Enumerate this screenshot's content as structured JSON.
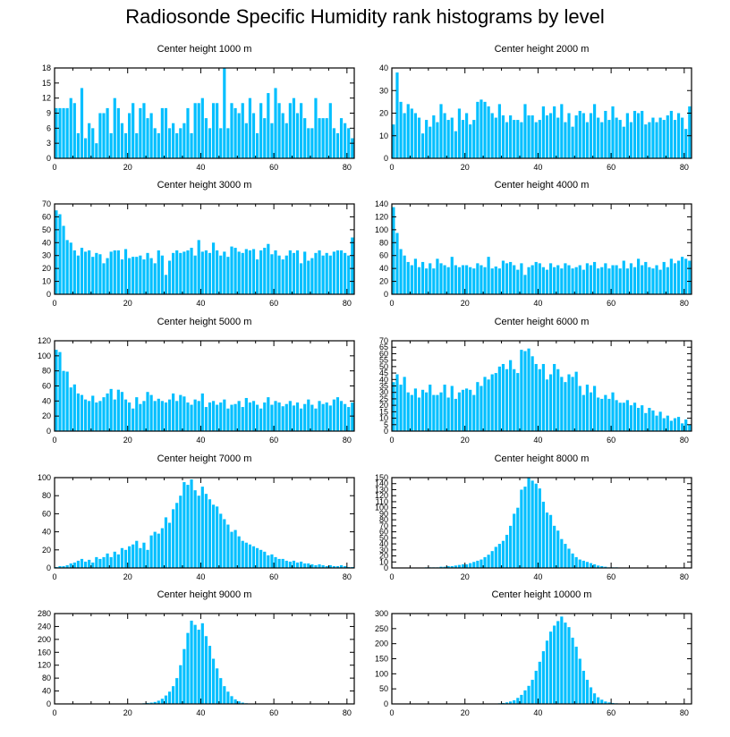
{
  "figure_title": "Radiosonde Specific Humidity rank histograms by level",
  "bar_color": "#00bfff",
  "axis_color": "#000000",
  "chart_data": [
    {
      "type": "bar",
      "title": "Center height 1000 m",
      "xlim": [
        0,
        82
      ],
      "ylim": [
        0,
        18
      ],
      "yticks": [
        0,
        3,
        6,
        9,
        12,
        15,
        18
      ],
      "xticks": [
        0,
        20,
        40,
        60,
        80
      ],
      "values": [
        10,
        10,
        10,
        10,
        12,
        11,
        5,
        14,
        4,
        7,
        6,
        3,
        9,
        9,
        10,
        5,
        12,
        10,
        7,
        5,
        9,
        11,
        5,
        10,
        11,
        8,
        9,
        6,
        5,
        10,
        10,
        6,
        7,
        5,
        6,
        7,
        10,
        5,
        11,
        11,
        12,
        8,
        6,
        11,
        11,
        6,
        18,
        6,
        11,
        10,
        9,
        11,
        7,
        12,
        9,
        5,
        11,
        8,
        13,
        7,
        14,
        11,
        9,
        7,
        11,
        12,
        9,
        11,
        8,
        6,
        6,
        12,
        8,
        8,
        8,
        11,
        6,
        5,
        8,
        7,
        6,
        4
      ]
    },
    {
      "type": "bar",
      "title": "Center height 2000 m",
      "xlim": [
        0,
        82
      ],
      "ylim": [
        0,
        40
      ],
      "yticks": [
        0,
        10,
        20,
        30,
        40
      ],
      "xticks": [
        0,
        20,
        40,
        60,
        80
      ],
      "values": [
        15,
        38,
        25,
        20,
        24,
        22,
        20,
        18,
        11,
        17,
        14,
        19,
        16,
        24,
        20,
        17,
        18,
        12,
        22,
        17,
        20,
        15,
        17,
        25,
        26,
        25,
        23,
        20,
        18,
        24,
        19,
        16,
        19,
        17,
        17,
        16,
        24,
        19,
        19,
        16,
        17,
        23,
        19,
        20,
        23,
        18,
        24,
        16,
        20,
        14,
        19,
        21,
        20,
        16,
        20,
        24,
        18,
        16,
        21,
        17,
        23,
        18,
        17,
        14,
        20,
        16,
        21,
        20,
        21,
        15,
        16,
        18,
        16,
        18,
        17,
        19,
        21,
        17,
        20,
        18,
        13,
        23
      ]
    },
    {
      "type": "bar",
      "title": "Center height 3000 m",
      "xlim": [
        0,
        82
      ],
      "ylim": [
        0,
        70
      ],
      "yticks": [
        0,
        10,
        20,
        30,
        40,
        50,
        60,
        70
      ],
      "xticks": [
        0,
        20,
        40,
        60,
        80
      ],
      "values": [
        65,
        62,
        53,
        42,
        40,
        34,
        30,
        36,
        33,
        34,
        29,
        32,
        31,
        24,
        28,
        33,
        34,
        34,
        27,
        35,
        28,
        29,
        29,
        30,
        27,
        32,
        28,
        24,
        34,
        30,
        15,
        26,
        32,
        34,
        32,
        33,
        34,
        36,
        30,
        42,
        33,
        34,
        32,
        40,
        34,
        30,
        33,
        29,
        37,
        36,
        33,
        32,
        35,
        34,
        35,
        27,
        34,
        36,
        39,
        31,
        34,
        30,
        27,
        30,
        34,
        32,
        34,
        24,
        33,
        26,
        28,
        32,
        34,
        30,
        32,
        30,
        33,
        34,
        34,
        32,
        30,
        44
      ]
    },
    {
      "type": "bar",
      "title": "Center height 4000 m",
      "xlim": [
        0,
        82
      ],
      "ylim": [
        0,
        140
      ],
      "yticks": [
        0,
        20,
        40,
        60,
        80,
        100,
        120,
        140
      ],
      "xticks": [
        0,
        20,
        40,
        60,
        80
      ],
      "values": [
        135,
        95,
        70,
        60,
        50,
        45,
        55,
        42,
        50,
        40,
        48,
        40,
        55,
        48,
        45,
        42,
        58,
        45,
        42,
        45,
        45,
        42,
        40,
        48,
        45,
        42,
        58,
        40,
        43,
        40,
        52,
        48,
        50,
        45,
        38,
        48,
        30,
        42,
        45,
        50,
        48,
        42,
        38,
        48,
        42,
        45,
        40,
        48,
        45,
        40,
        42,
        45,
        38,
        48,
        45,
        50,
        40,
        42,
        48,
        40,
        45,
        45,
        40,
        52,
        40,
        48,
        42,
        55,
        45,
        50,
        42,
        40,
        45,
        38,
        50,
        42,
        55,
        48,
        52,
        58,
        55,
        52
      ]
    },
    {
      "type": "bar",
      "title": "Center height 5000 m",
      "xlim": [
        0,
        82
      ],
      "ylim": [
        0,
        120
      ],
      "yticks": [
        0,
        20,
        40,
        60,
        80,
        100,
        120
      ],
      "xticks": [
        0,
        20,
        40,
        60,
        80
      ],
      "values": [
        108,
        105,
        80,
        79,
        58,
        62,
        50,
        48,
        42,
        40,
        47,
        38,
        40,
        45,
        50,
        56,
        42,
        55,
        52,
        42,
        38,
        30,
        45,
        36,
        40,
        52,
        48,
        40,
        43,
        40,
        38,
        42,
        50,
        40,
        48,
        46,
        38,
        35,
        42,
        40,
        50,
        32,
        38,
        40,
        35,
        38,
        42,
        30,
        35,
        36,
        40,
        32,
        44,
        38,
        40,
        35,
        30,
        38,
        45,
        35,
        40,
        38,
        33,
        36,
        40,
        34,
        38,
        30,
        36,
        42,
        35,
        30,
        40,
        36,
        38,
        34,
        42,
        45,
        40,
        36,
        32,
        38
      ]
    },
    {
      "type": "bar",
      "title": "Center height 6000 m",
      "xlim": [
        0,
        82
      ],
      "ylim": [
        0,
        70
      ],
      "yticks": [
        0,
        5,
        10,
        15,
        20,
        25,
        30,
        35,
        40,
        45,
        50,
        55,
        60,
        65,
        70
      ],
      "xticks": [
        0,
        20,
        40,
        60,
        80
      ],
      "values": [
        38,
        44,
        36,
        42,
        30,
        28,
        33,
        26,
        32,
        30,
        36,
        28,
        28,
        30,
        36,
        26,
        35,
        25,
        30,
        32,
        33,
        32,
        28,
        38,
        35,
        42,
        40,
        44,
        45,
        50,
        52,
        48,
        55,
        48,
        45,
        63,
        62,
        64,
        58,
        52,
        48,
        52,
        40,
        44,
        52,
        48,
        42,
        38,
        44,
        42,
        46,
        35,
        28,
        36,
        30,
        35,
        26,
        25,
        28,
        25,
        30,
        24,
        22,
        22,
        24,
        20,
        22,
        18,
        20,
        14,
        18,
        16,
        12,
        15,
        10,
        12,
        8,
        10,
        11,
        6,
        9,
        5
      ]
    },
    {
      "type": "bar",
      "title": "Center height 7000 m",
      "xlim": [
        0,
        82
      ],
      "ylim": [
        0,
        100
      ],
      "yticks": [
        0,
        20,
        40,
        60,
        80,
        100
      ],
      "xticks": [
        0,
        20,
        40,
        60,
        80
      ],
      "values": [
        1,
        2,
        2,
        3,
        5,
        6,
        8,
        10,
        7,
        9,
        6,
        12,
        10,
        12,
        16,
        12,
        18,
        15,
        22,
        20,
        24,
        26,
        30,
        22,
        28,
        20,
        36,
        40,
        38,
        44,
        56,
        50,
        65,
        72,
        80,
        95,
        92,
        98,
        86,
        80,
        90,
        82,
        76,
        70,
        68,
        60,
        54,
        48,
        40,
        42,
        35,
        30,
        28,
        26,
        24,
        22,
        20,
        18,
        14,
        15,
        12,
        10,
        10,
        8,
        7,
        8,
        6,
        7,
        5,
        5,
        4,
        3,
        4,
        3,
        2,
        3,
        2,
        2,
        3,
        2,
        1,
        1
      ]
    },
    {
      "type": "bar",
      "title": "Center height 8000 m",
      "xlim": [
        0,
        82
      ],
      "ylim": [
        0,
        150
      ],
      "yticks": [
        0,
        10,
        20,
        30,
        40,
        50,
        60,
        70,
        80,
        90,
        100,
        110,
        120,
        130,
        140,
        150
      ],
      "xticks": [
        0,
        20,
        40,
        60,
        80
      ],
      "values": [
        0,
        0,
        0,
        0,
        0,
        0,
        0,
        0,
        0,
        1,
        1,
        1,
        1,
        2,
        2,
        3,
        3,
        4,
        5,
        6,
        6,
        8,
        10,
        12,
        14,
        18,
        22,
        28,
        35,
        40,
        45,
        55,
        70,
        90,
        100,
        130,
        135,
        150,
        145,
        140,
        132,
        110,
        92,
        88,
        70,
        62,
        48,
        40,
        32,
        24,
        18,
        14,
        12,
        10,
        8,
        6,
        4,
        3,
        2,
        1,
        1,
        1,
        0,
        0,
        0,
        0,
        0,
        0,
        0,
        0,
        0,
        0,
        0,
        0,
        0,
        0,
        0,
        0,
        0,
        0,
        0,
        0
      ]
    },
    {
      "type": "bar",
      "title": "Center height 9000 m",
      "xlim": [
        0,
        82
      ],
      "ylim": [
        0,
        280
      ],
      "yticks": [
        0,
        40,
        80,
        120,
        160,
        200,
        240,
        280
      ],
      "xticks": [
        0,
        20,
        40,
        60,
        80
      ],
      "values": [
        0,
        0,
        0,
        0,
        0,
        0,
        0,
        0,
        0,
        0,
        0,
        0,
        0,
        0,
        0,
        0,
        0,
        0,
        0,
        0,
        0,
        0,
        1,
        1,
        2,
        3,
        4,
        6,
        10,
        16,
        26,
        38,
        55,
        80,
        120,
        170,
        220,
        258,
        245,
        230,
        250,
        210,
        180,
        140,
        110,
        80,
        55,
        38,
        24,
        14,
        8,
        4,
        2,
        1,
        1,
        0,
        0,
        0,
        0,
        0,
        0,
        0,
        0,
        0,
        0,
        0,
        0,
        0,
        0,
        0,
        0,
        0,
        0,
        0,
        0,
        0,
        0,
        0,
        0,
        0,
        0,
        0
      ]
    },
    {
      "type": "bar",
      "title": "Center height 10000 m",
      "xlim": [
        0,
        82
      ],
      "ylim": [
        0,
        300
      ],
      "yticks": [
        0,
        50,
        100,
        150,
        200,
        250,
        300
      ],
      "xticks": [
        0,
        20,
        40,
        60,
        80
      ],
      "values": [
        0,
        0,
        0,
        0,
        0,
        0,
        0,
        0,
        0,
        0,
        0,
        0,
        0,
        0,
        0,
        0,
        0,
        0,
        0,
        0,
        0,
        0,
        0,
        0,
        0,
        0,
        0,
        0,
        1,
        2,
        3,
        5,
        8,
        12,
        20,
        30,
        45,
        60,
        80,
        110,
        140,
        175,
        210,
        240,
        260,
        275,
        290,
        270,
        255,
        220,
        190,
        150,
        110,
        80,
        55,
        35,
        22,
        14,
        8,
        5,
        3,
        2,
        1,
        1,
        0,
        0,
        0,
        0,
        0,
        0,
        0,
        0,
        0,
        0,
        0,
        0,
        0,
        0,
        0,
        0,
        0,
        0
      ]
    }
  ]
}
